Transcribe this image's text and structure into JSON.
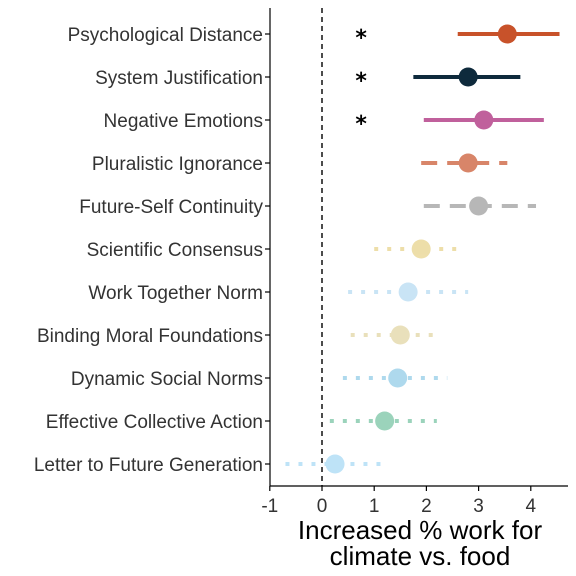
{
  "chart_data": {
    "type": "scatter",
    "orientation": "horizontal",
    "xlabel": [
      "Increased % work for",
      "climate vs. food"
    ],
    "xlim": [
      -1.0,
      4.75
    ],
    "xticks": [
      -1,
      0,
      1,
      2,
      3,
      4
    ],
    "reference_line": 0,
    "grid": false,
    "significance_marker": "*",
    "significance_x": 0.75,
    "series": [
      {
        "label": "Psychological Distance",
        "estimate": 3.55,
        "low": 2.6,
        "high": 4.55,
        "color": "#c8522a",
        "line_style": "solid",
        "opacity": 1.0,
        "significant": true
      },
      {
        "label": "System Justification",
        "estimate": 2.8,
        "low": 1.75,
        "high": 3.8,
        "color": "#0e2a3c",
        "line_style": "solid",
        "opacity": 1.0,
        "significant": true
      },
      {
        "label": "Negative Emotions",
        "estimate": 3.1,
        "low": 1.95,
        "high": 4.25,
        "color": "#c0609c",
        "line_style": "solid",
        "opacity": 1.0,
        "significant": true
      },
      {
        "label": "Pluralistic Ignorance",
        "estimate": 2.8,
        "low": 1.9,
        "high": 3.55,
        "color": "#c8522a",
        "line_style": "dashed",
        "opacity": 0.7,
        "significant": false
      },
      {
        "label": "Future-Self Continuity",
        "estimate": 3.0,
        "low": 1.95,
        "high": 4.1,
        "color": "#9a9a9a",
        "line_style": "dashed",
        "opacity": 0.7,
        "significant": false
      },
      {
        "label": "Scientific Consensus",
        "estimate": 1.9,
        "low": 1.0,
        "high": 2.7,
        "color": "#ddbf55",
        "line_style": "dotted",
        "opacity": 0.5,
        "significant": false
      },
      {
        "label": "Work Together Norm",
        "estimate": 1.65,
        "low": 0.5,
        "high": 2.8,
        "color": "#94cbed",
        "line_style": "dotted",
        "opacity": 0.5,
        "significant": false
      },
      {
        "label": "Binding Moral Foundations",
        "estimate": 1.5,
        "low": 0.55,
        "high": 2.25,
        "color": "#d5c27a",
        "line_style": "dotted",
        "opacity": 0.5,
        "significant": false
      },
      {
        "label": "Dynamic Social Norms",
        "estimate": 1.45,
        "low": 0.4,
        "high": 2.4,
        "color": "#5fb4dc",
        "line_style": "dotted",
        "opacity": 0.5,
        "significant": false
      },
      {
        "label": "Effective Collective Action",
        "estimate": 1.2,
        "low": 0.15,
        "high": 2.2,
        "color": "#3aa87a",
        "line_style": "dotted",
        "opacity": 0.5,
        "significant": false
      },
      {
        "label": "Letter to Future Generation",
        "estimate": 0.25,
        "low": -0.7,
        "high": 1.25,
        "color": "#7fc8f0",
        "line_style": "dotted",
        "opacity": 0.5,
        "significant": false
      }
    ]
  }
}
